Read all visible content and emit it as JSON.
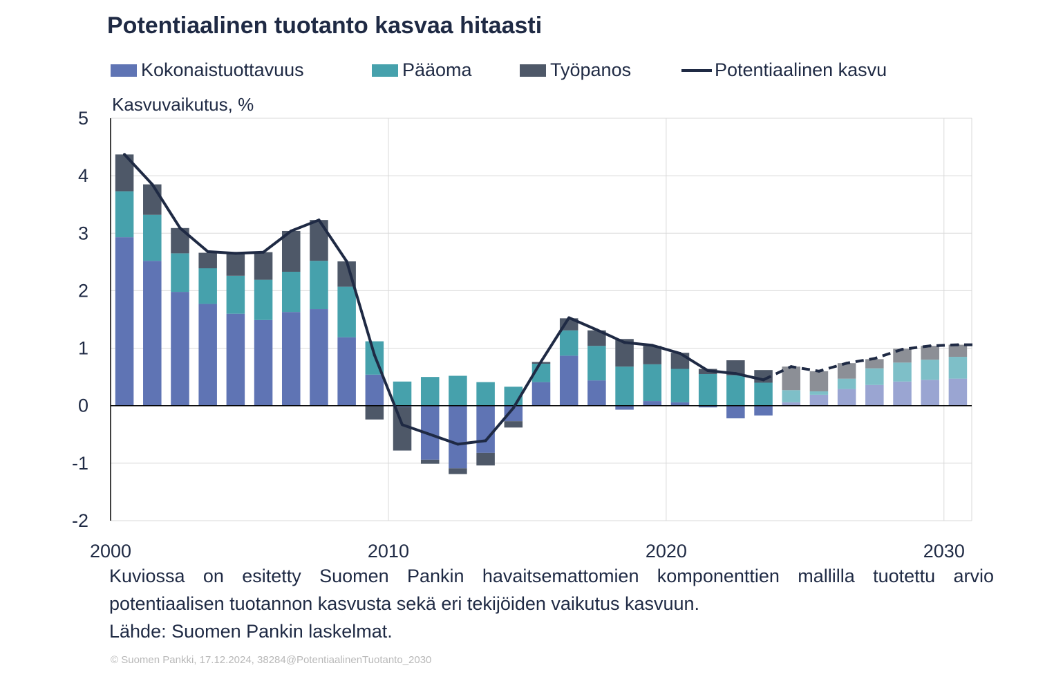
{
  "title": "Potentiaalinen tuotanto kasvaa hitaasti",
  "legend": {
    "tfp": "Kokonaistuottavuus",
    "capital": "Pääoma",
    "labour": "Työpanos",
    "potential": "Potentiaalinen kasvu"
  },
  "colors": {
    "tfp": "#5f74b4",
    "capital": "#46a1ac",
    "labour": "#4e5868",
    "potential": "#1f2a44",
    "tfp_forecast": "#9aa5d2",
    "capital_forecast": "#7ebfc8",
    "labour_forecast": "#8c8f96",
    "grid": "#d9d9d9",
    "axis": "#000000"
  },
  "caption": "Kuviossa on esitetty Suomen Pankin havaitsemattomien komponenttien mallilla tuotettu arvio potentiaalisen tuotannon kasvusta sekä eri tekijöiden vaikutus kasvuun.",
  "source": "Lähde: Suomen Pankin laskelmat.",
  "copyright": "© Suomen Pankki, 17.12.2024, 38284@PotentiaalinenTuotanto_2030",
  "chart_data": {
    "type": "bar",
    "stacked": true,
    "title": "Potentiaalinen tuotanto kasvaa hitaasti",
    "ylabel": "Kasvuvaikutus, %",
    "xlabel": "",
    "ylim": [
      -2,
      5
    ],
    "yticks": [
      5,
      4,
      3,
      2,
      1,
      0,
      -1,
      -2
    ],
    "xlim": [
      2000,
      2031
    ],
    "xticks": [
      2000,
      2010,
      2020,
      2030
    ],
    "grid": true,
    "legend_position": "top",
    "forecast_from": 2024,
    "categories": [
      2000,
      2001,
      2002,
      2003,
      2004,
      2005,
      2006,
      2007,
      2008,
      2009,
      2010,
      2011,
      2012,
      2013,
      2014,
      2015,
      2016,
      2017,
      2018,
      2019,
      2020,
      2021,
      2022,
      2023,
      2024,
      2025,
      2026,
      2027,
      2028,
      2029,
      2030
    ],
    "series": [
      {
        "name": "Kokonaistuottavuus",
        "kind": "bar",
        "values": [
          2.93,
          2.52,
          1.98,
          1.77,
          1.6,
          1.49,
          1.63,
          1.68,
          1.19,
          0.54,
          -0.02,
          -0.94,
          -1.09,
          -0.82,
          -0.27,
          0.41,
          0.87,
          0.44,
          -0.07,
          0.08,
          0.06,
          -0.03,
          -0.22,
          -0.17,
          0.06,
          0.19,
          0.29,
          0.36,
          0.42,
          0.45,
          0.47
        ]
      },
      {
        "name": "Pääoma",
        "kind": "bar",
        "values": [
          0.8,
          0.8,
          0.67,
          0.62,
          0.66,
          0.7,
          0.7,
          0.84,
          0.88,
          0.58,
          0.42,
          0.5,
          0.52,
          0.41,
          0.33,
          0.32,
          0.44,
          0.6,
          0.68,
          0.64,
          0.58,
          0.55,
          0.53,
          0.4,
          0.21,
          0.06,
          0.18,
          0.29,
          0.33,
          0.35,
          0.38
        ]
      },
      {
        "name": "Työpanos",
        "kind": "bar",
        "values": [
          0.64,
          0.53,
          0.44,
          0.27,
          0.39,
          0.48,
          0.71,
          0.71,
          0.44,
          -0.24,
          -0.76,
          -0.07,
          -0.1,
          -0.22,
          -0.11,
          0.03,
          0.21,
          0.27,
          0.48,
          0.32,
          0.28,
          0.09,
          0.26,
          0.22,
          0.41,
          0.35,
          0.27,
          0.16,
          0.24,
          0.24,
          0.21
        ]
      },
      {
        "name": "Potentiaalinen kasvu",
        "kind": "line",
        "values": [
          4.37,
          3.85,
          3.09,
          2.68,
          2.65,
          2.67,
          3.04,
          3.23,
          2.51,
          0.88,
          -0.33,
          -0.5,
          -0.67,
          -0.61,
          -0.04,
          0.77,
          1.53,
          1.32,
          1.1,
          1.05,
          0.91,
          0.61,
          0.56,
          0.45,
          0.68,
          0.6,
          0.74,
          0.82,
          0.98,
          1.04,
          1.06
        ]
      }
    ]
  }
}
